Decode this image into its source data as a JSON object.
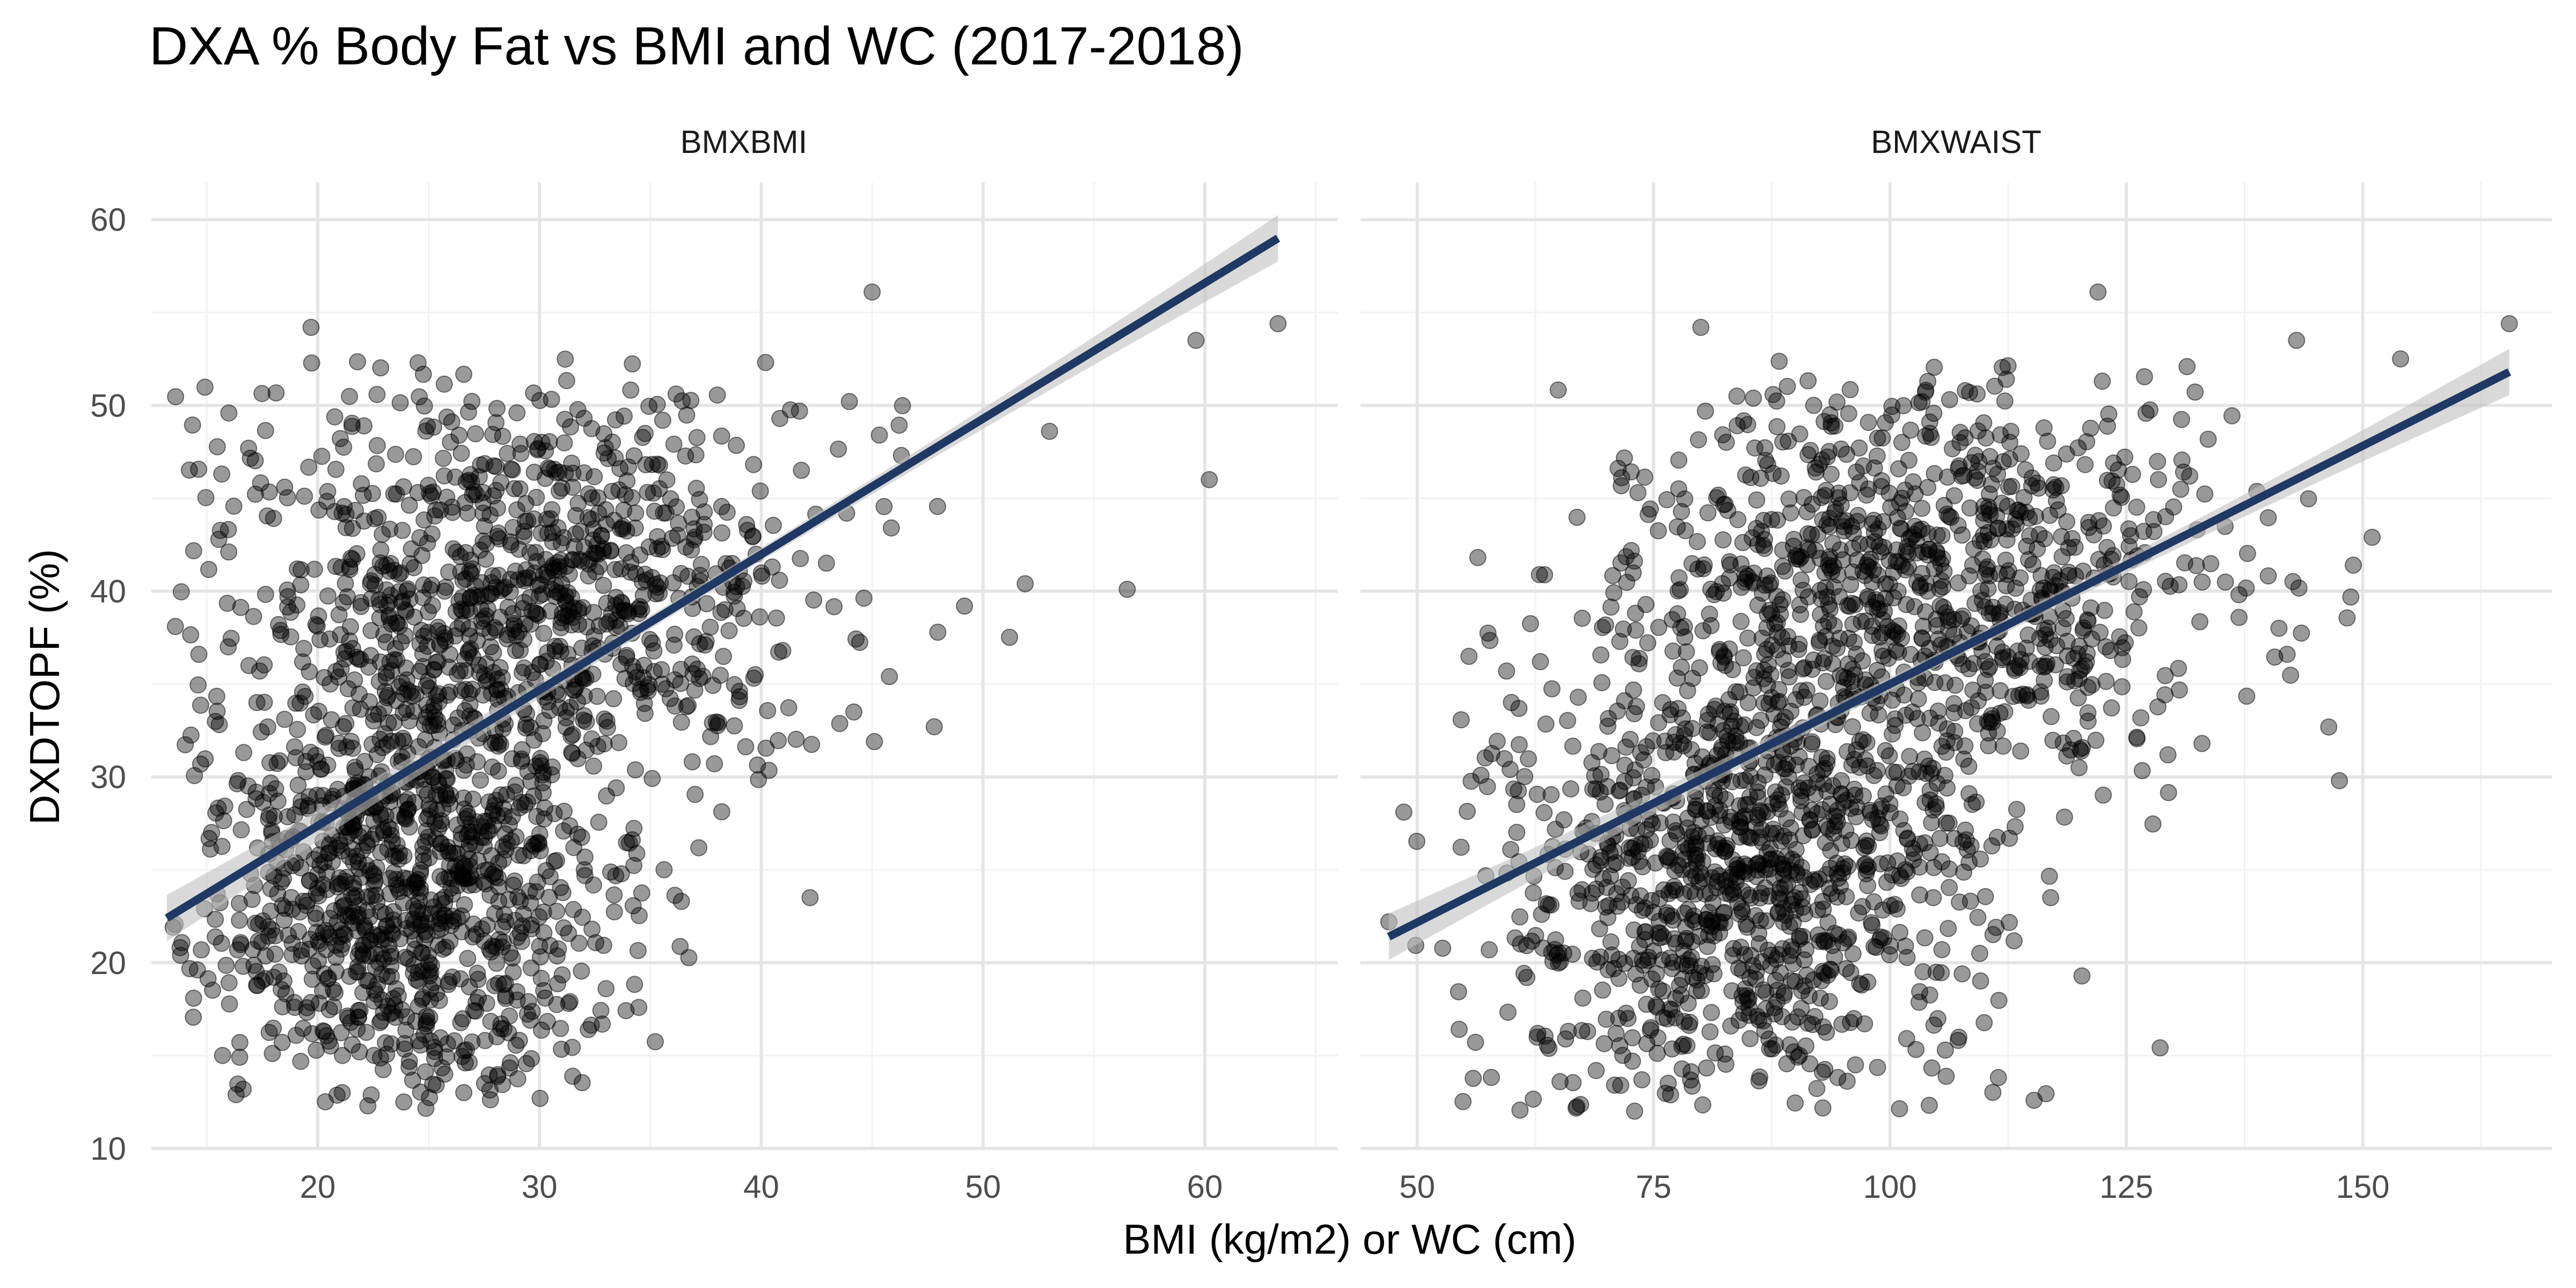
{
  "chart_data": {
    "type": "scatter",
    "title": "DXA % Body Fat vs BMI and WC (2017-2018)",
    "xlabel": "BMI (kg/m2) or WC (cm)",
    "ylabel": "DXDTOPF (%)",
    "ylim": [
      10,
      62
    ],
    "yticks": [
      10,
      20,
      30,
      40,
      50,
      60
    ],
    "grid": true,
    "legend": "none",
    "colors": {
      "points": "#000000",
      "regression_line": "#1f3864",
      "confidence_band": "#bfbfbf",
      "grid_major": "#e5e5e5",
      "grid_minor": "#f2f2f2",
      "axis_text": "#4d4d4d",
      "title_text": "#000000"
    },
    "point_opacity": 0.4,
    "panels": [
      {
        "strip_label": "BMXBMI",
        "xlim": [
          12.5,
          66
        ],
        "xticks": [
          20,
          30,
          40,
          50,
          60
        ],
        "fit": {
          "x_start": 13.2,
          "y_start": 22.4,
          "x_end": 63.3,
          "y_end": 59.0
        },
        "outliers": [
          [
            19.7,
            54.2
          ],
          [
            45.0,
            56.1
          ],
          [
            63.3,
            54.4
          ],
          [
            59.6,
            53.5
          ],
          [
            60.2,
            46.0
          ],
          [
            56.5,
            40.1
          ],
          [
            51.9,
            40.4
          ],
          [
            42.2,
            23.5
          ],
          [
            36.4,
            23.3
          ],
          [
            33.0,
            18.6
          ],
          [
            29.5,
            17.9
          ],
          [
            47.8,
            32.7
          ],
          [
            45.1,
            31.9
          ],
          [
            53.0,
            48.6
          ]
        ],
        "generated_points": {
          "count": 1950,
          "clusters": [
            {
              "weight": 0.55,
              "x_mean": 24,
              "x_sd": 4.6,
              "y_mean": 24.5,
              "y_sd": 6.5
            },
            {
              "weight": 0.45,
              "x_mean": 30,
              "x_sd": 6.8,
              "y_mean": 40.5,
              "y_sd": 5.5
            }
          ],
          "x_range": [
            13.2,
            54
          ],
          "y_range": [
            12,
            52.5
          ]
        }
      },
      {
        "strip_label": "BMXWAIST",
        "xlim": [
          44,
          170
        ],
        "xticks": [
          50,
          75,
          100,
          125,
          150
        ],
        "fit": {
          "x_start": 47,
          "y_start": 21.4,
          "x_end": 165.5,
          "y_end": 51.8
        },
        "outliers": [
          [
            80,
            54.2
          ],
          [
            122,
            56.1
          ],
          [
            165.5,
            54.4
          ],
          [
            154,
            52.5
          ],
          [
            143,
            53.5
          ],
          [
            151,
            42.9
          ],
          [
            149,
            41.4
          ],
          [
            142,
            36.6
          ],
          [
            109.5,
            20.5
          ],
          [
            97,
            18.8
          ],
          [
            117,
            23.5
          ],
          [
            133,
            31.8
          ],
          [
            120,
            30.5
          ],
          [
            47,
            22.2
          ]
        ],
        "generated_points": {
          "count": 1950,
          "clusters": [
            {
              "weight": 0.55,
              "x_mean": 84,
              "x_sd": 12.5,
              "y_mean": 24.5,
              "y_sd": 6.5
            },
            {
              "weight": 0.45,
              "x_mean": 103,
              "x_sd": 16.5,
              "y_mean": 40.5,
              "y_sd": 5.5
            }
          ],
          "x_range": [
            48,
            152
          ],
          "y_range": [
            12,
            52.5
          ]
        }
      }
    ]
  }
}
